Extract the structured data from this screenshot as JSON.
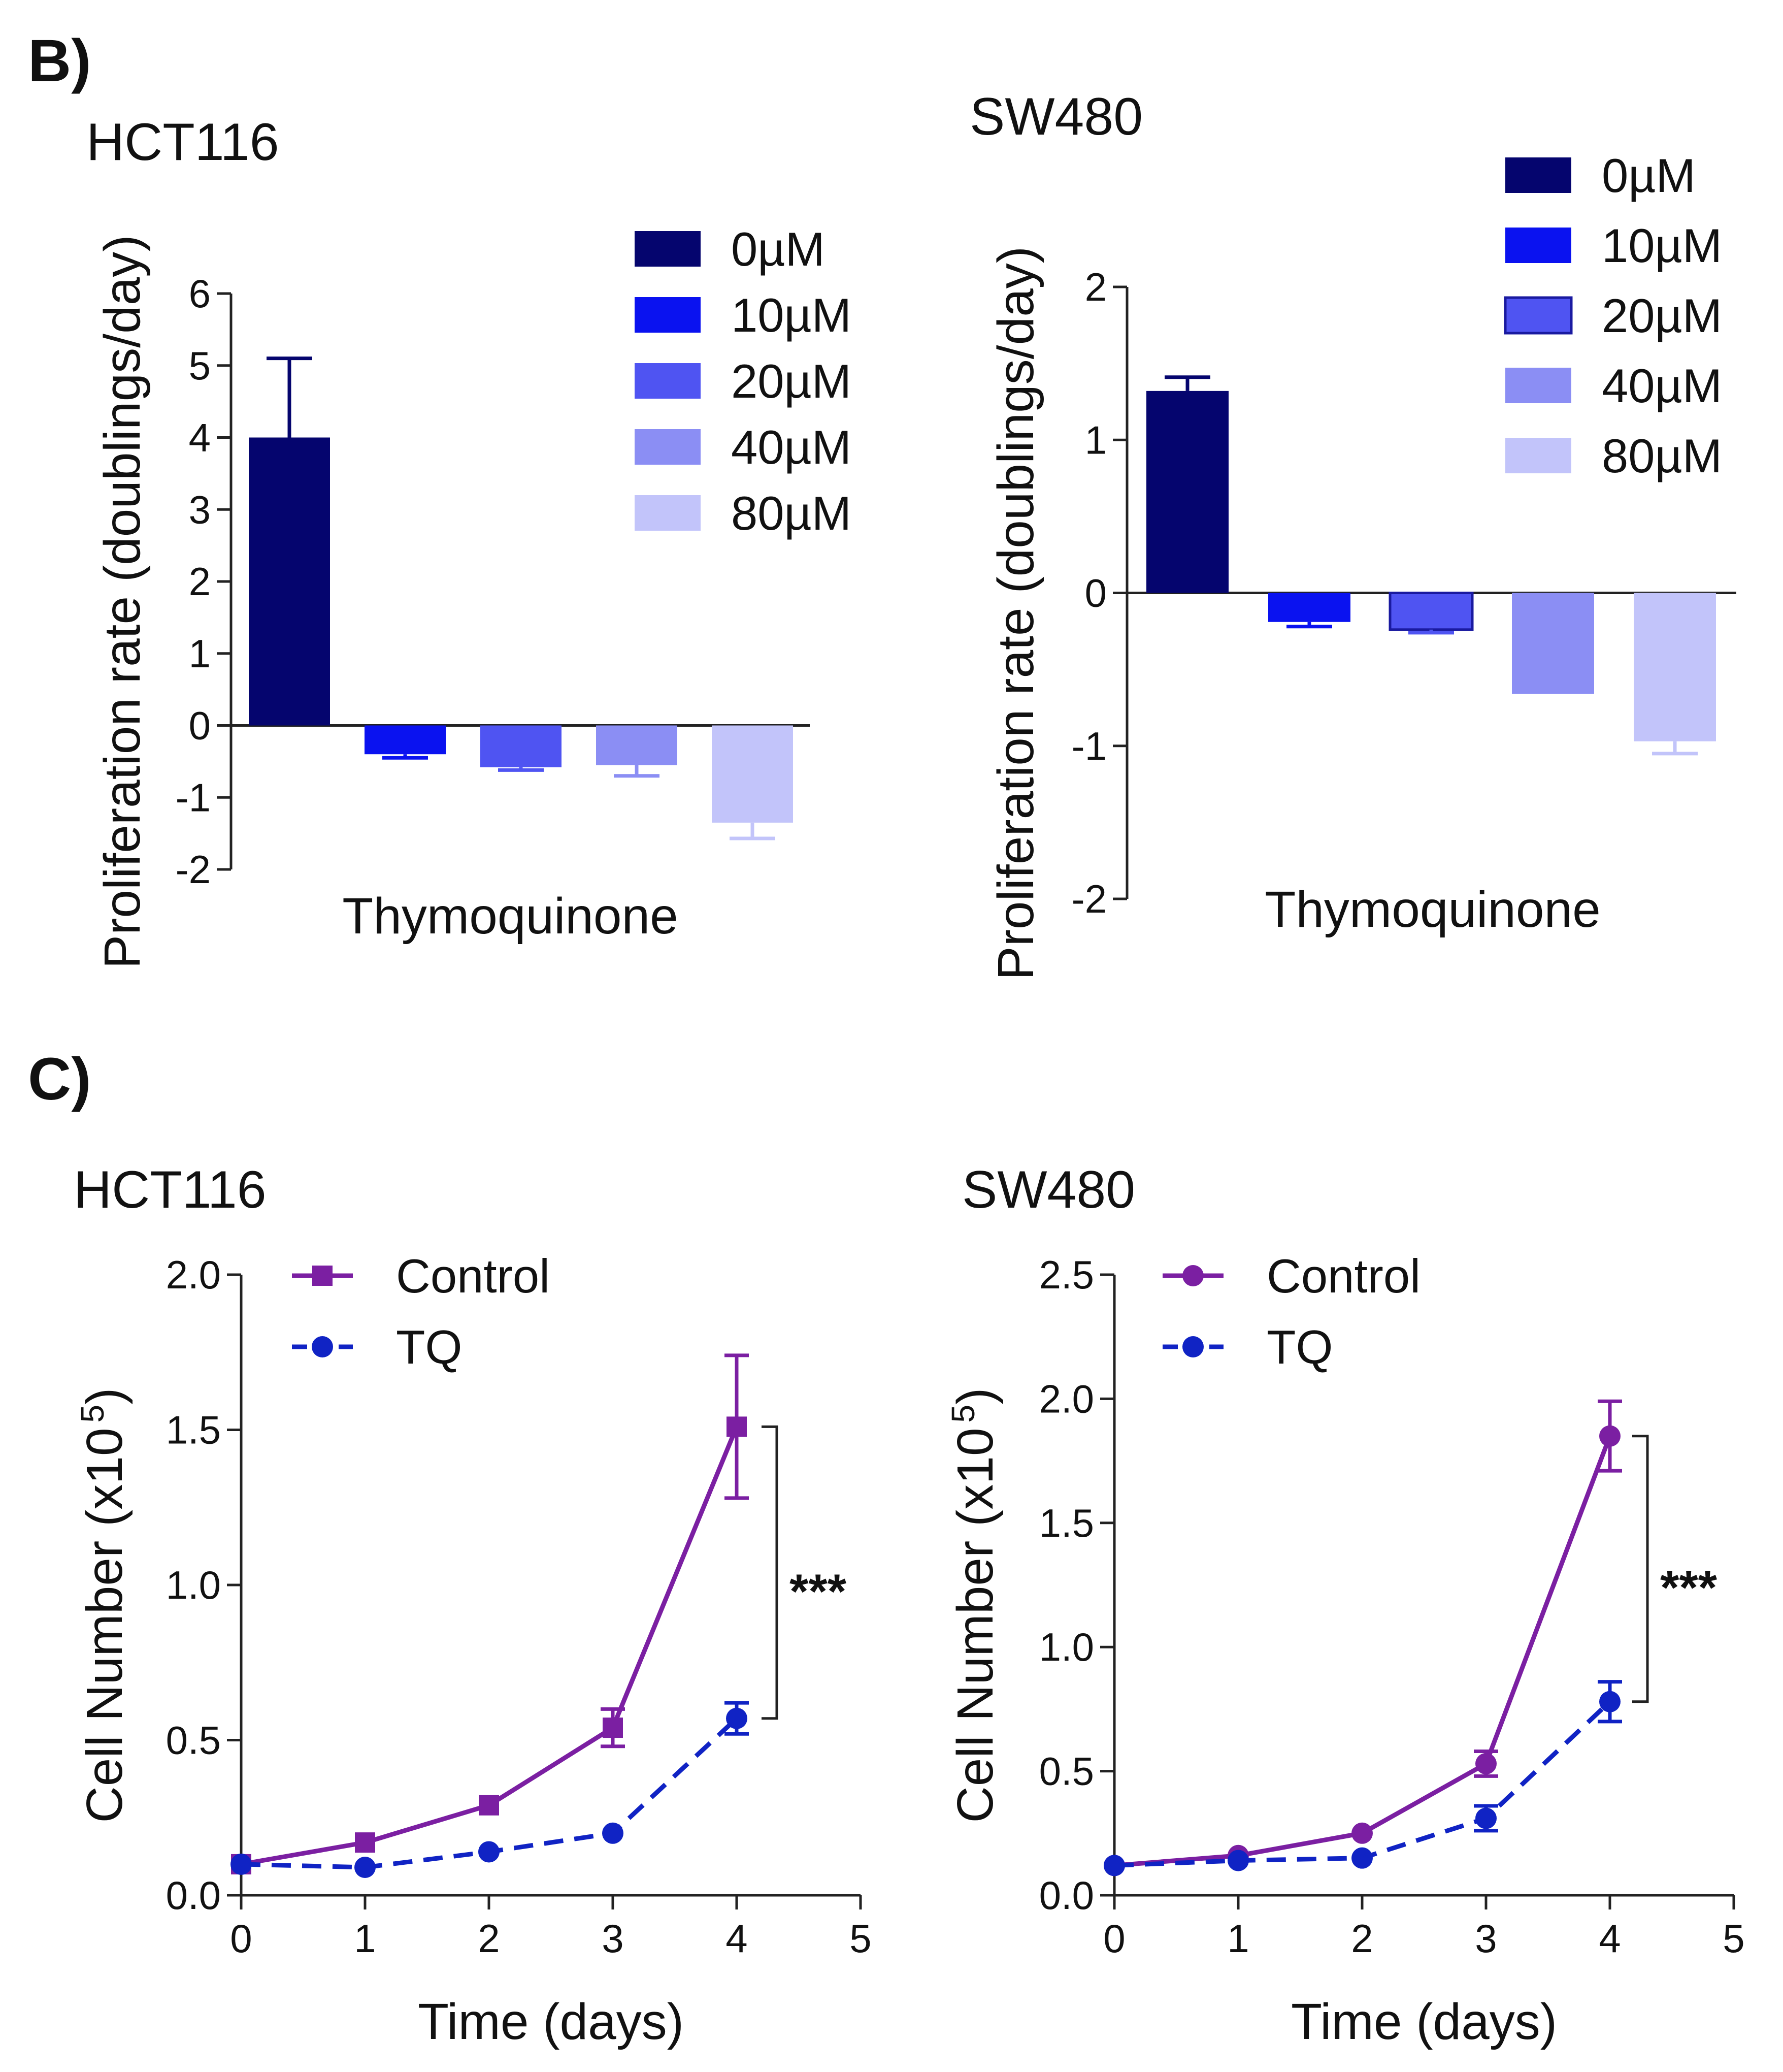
{
  "panels": {
    "b_label": "B)",
    "c_label": "C)"
  },
  "concentration_colors": [
    "#05056e",
    "#0a12f0",
    "#4f54f2",
    "#8b8ef4",
    "#c2c4fa"
  ],
  "chart_data": [
    {
      "type": "bar",
      "title": "HCT116",
      "xlabel": "Thymoquinone",
      "ylabel": "Proliferation rate (doublings/day)",
      "ylim": [
        -2,
        6
      ],
      "yticks": [
        -2,
        -1,
        0,
        1,
        2,
        3,
        4,
        5,
        6
      ],
      "legend_position": "top-right",
      "series": [
        {
          "name": "0µM",
          "value": 4.0,
          "error": 1.1
        },
        {
          "name": "10µM",
          "value": -0.4,
          "error": 0.05
        },
        {
          "name": "20µM",
          "value": -0.58,
          "error": 0.04
        },
        {
          "name": "40µM",
          "value": -0.55,
          "error": 0.15
        },
        {
          "name": "80µM",
          "value": -1.35,
          "error": 0.22
        }
      ]
    },
    {
      "type": "bar",
      "title": "SW480",
      "xlabel": "Thymoquinone",
      "ylabel": "Proliferation rate (doublings/day)",
      "ylim": [
        -2,
        2
      ],
      "yticks": [
        -2,
        -1,
        0,
        1,
        2
      ],
      "legend_position": "top-right",
      "series": [
        {
          "name": "0µM",
          "value": 1.32,
          "error": 0.09
        },
        {
          "name": "10µM",
          "value": -0.19,
          "error": 0.03
        },
        {
          "name": "20µM",
          "value": -0.24,
          "error": 0.02
        },
        {
          "name": "40µM",
          "value": -0.66,
          "error": 0.0
        },
        {
          "name": "80µM",
          "value": -0.97,
          "error": 0.08
        }
      ]
    },
    {
      "type": "line",
      "title": "HCT116",
      "xlabel": "Time (days)",
      "ylabel": "Cell Number (x10",
      "ylabel_exponent": "5",
      "ylabel_close": ")",
      "xlim": [
        0,
        5
      ],
      "ylim": [
        0,
        2.0
      ],
      "xticks": [
        "0",
        "1",
        "2",
        "3",
        "4",
        "5"
      ],
      "yticks": [
        "0.0",
        "0.5",
        "1.0",
        "1.5",
        "2.0"
      ],
      "legend_position": "top-left",
      "significance": "***",
      "series": [
        {
          "name": "Control",
          "color": "#7b1fa2",
          "marker": "square",
          "dashed": false,
          "x": [
            0,
            1,
            2,
            3,
            4
          ],
          "y": [
            0.1,
            0.17,
            0.29,
            0.54,
            1.51
          ],
          "error": [
            0.01,
            0.01,
            0.01,
            0.06,
            0.23
          ]
        },
        {
          "name": "TQ",
          "color": "#1023c4",
          "marker": "circle",
          "dashed": true,
          "x": [
            0,
            1,
            2,
            3,
            4
          ],
          "y": [
            0.1,
            0.09,
            0.14,
            0.2,
            0.57
          ],
          "error": [
            0.01,
            0.01,
            0.01,
            0.01,
            0.05
          ]
        }
      ]
    },
    {
      "type": "line",
      "title": "SW480",
      "xlabel": "Time (days)",
      "ylabel": "Cell Number (x10",
      "ylabel_exponent": "5",
      "ylabel_close": ")",
      "xlim": [
        0,
        5
      ],
      "ylim": [
        0,
        2.5
      ],
      "xticks": [
        "0",
        "1",
        "2",
        "3",
        "4",
        "5"
      ],
      "yticks": [
        "0.0",
        "0.5",
        "1.0",
        "1.5",
        "2.0",
        "2.5"
      ],
      "legend_position": "top-left",
      "significance": "***",
      "series": [
        {
          "name": "Control",
          "color": "#7b1fa2",
          "marker": "circle",
          "dashed": false,
          "x": [
            0,
            1,
            2,
            3,
            4
          ],
          "y": [
            0.12,
            0.16,
            0.25,
            0.53,
            1.85
          ],
          "error": [
            0.01,
            0.01,
            0.01,
            0.05,
            0.14
          ]
        },
        {
          "name": "TQ",
          "color": "#1023c4",
          "marker": "circle",
          "dashed": true,
          "x": [
            0,
            1,
            2,
            3,
            4
          ],
          "y": [
            0.12,
            0.14,
            0.15,
            0.31,
            0.78
          ],
          "error": [
            0.01,
            0.01,
            0.01,
            0.05,
            0.08
          ]
        }
      ]
    }
  ]
}
